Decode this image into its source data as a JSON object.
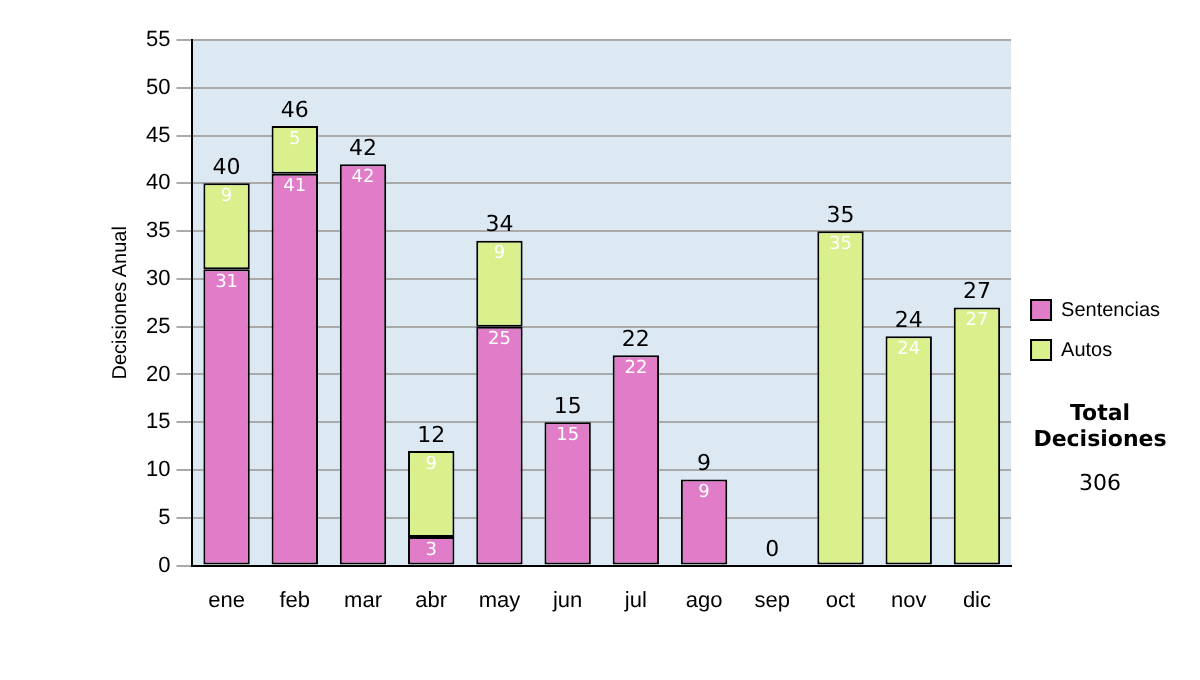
{
  "chart_data": {
    "type": "bar",
    "stacked": true,
    "ylabel": "Decisiones Anual",
    "categories": [
      "ene",
      "feb",
      "mar",
      "abr",
      "may",
      "jun",
      "jul",
      "ago",
      "sep",
      "oct",
      "nov",
      "dic"
    ],
    "series": [
      {
        "name": "Sentencias",
        "color": "#e07cc8",
        "values": [
          31,
          41,
          42,
          3,
          25,
          15,
          22,
          9,
          0,
          0,
          0,
          0
        ],
        "value_labels": [
          "31",
          "41",
          "42",
          "3",
          "25",
          "15",
          "22",
          "9",
          null,
          null,
          null,
          null
        ]
      },
      {
        "name": "Autos",
        "color": "#d9f08c",
        "values": [
          9,
          5,
          0,
          9,
          9,
          0,
          0,
          0,
          0,
          35,
          24,
          27
        ],
        "value_labels": [
          "9",
          "5",
          null,
          "9",
          "9",
          null,
          null,
          null,
          null,
          "35",
          "24",
          "27"
        ]
      }
    ],
    "totals": [
      "40",
      "46",
      "42",
      "12",
      "34",
      "15",
      "22",
      "9",
      "0",
      "35",
      "24",
      "27"
    ],
    "ylim": [
      0,
      55
    ],
    "yticks": [
      0,
      5,
      10,
      15,
      20,
      25,
      30,
      35,
      40,
      45,
      50,
      55
    ],
    "grid": "y",
    "legend": "right",
    "annotations": [
      "Total Decisiones",
      "306"
    ]
  }
}
